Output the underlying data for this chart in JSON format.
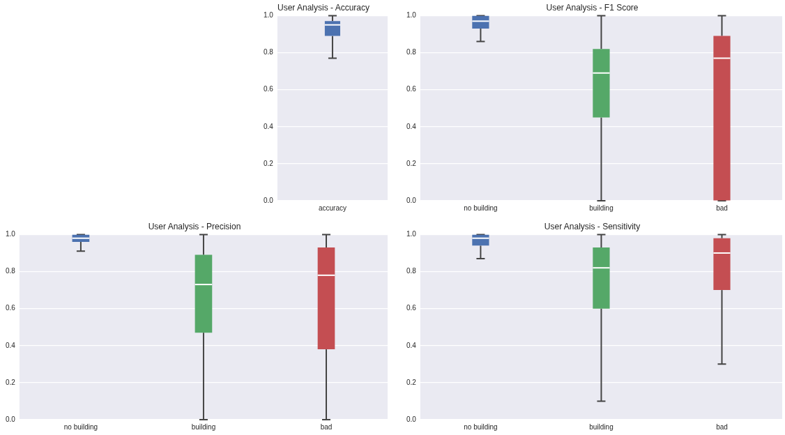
{
  "chart_data": [
    {
      "type": "box",
      "title": "User Analysis - Accuracy",
      "categories": [
        "accuracy"
      ],
      "colors": [
        "#4c72b0"
      ],
      "boxes": [
        {
          "low": 0.77,
          "q1": 0.89,
          "median": 0.95,
          "q3": 0.97,
          "high": 1.0
        }
      ],
      "ylim": [
        0,
        1
      ],
      "yticks": [
        {
          "value": 0,
          "label": "0.0"
        },
        {
          "value": 0.2,
          "label": "0.2"
        },
        {
          "value": 0.4,
          "label": "0.4"
        },
        {
          "value": 0.6,
          "label": "0.6"
        },
        {
          "value": 0.8,
          "label": "0.8"
        },
        {
          "value": 1,
          "label": "1.0"
        }
      ],
      "grid": "y"
    },
    {
      "type": "box",
      "title": "User Analysis - F1 Score",
      "categories": [
        "no building",
        "building",
        "bad"
      ],
      "colors": [
        "#4c72b0",
        "#55a868",
        "#c44e52"
      ],
      "boxes": [
        {
          "low": 0.86,
          "q1": 0.93,
          "median": 0.97,
          "q3": 1.0,
          "high": 1.0
        },
        {
          "low": 0.0,
          "q1": 0.45,
          "median": 0.69,
          "q3": 0.82,
          "high": 1.0
        },
        {
          "low": 0.0,
          "q1": 0.0,
          "median": 0.77,
          "q3": 0.89,
          "high": 1.0
        }
      ],
      "ylim": [
        0,
        1
      ],
      "yticks": [
        {
          "value": 0,
          "label": "0.0"
        },
        {
          "value": 0.2,
          "label": "0.2"
        },
        {
          "value": 0.4,
          "label": "0.4"
        },
        {
          "value": 0.6,
          "label": "0.6"
        },
        {
          "value": 0.8,
          "label": "0.8"
        },
        {
          "value": 1,
          "label": "1.0"
        }
      ],
      "grid": "y"
    },
    {
      "type": "box",
      "title": "User Analysis - Precision",
      "categories": [
        "no building",
        "building",
        "bad"
      ],
      "colors": [
        "#4c72b0",
        "#55a868",
        "#c44e52"
      ],
      "boxes": [
        {
          "low": 0.91,
          "q1": 0.96,
          "median": 0.98,
          "q3": 1.0,
          "high": 1.0
        },
        {
          "low": 0.0,
          "q1": 0.47,
          "median": 0.73,
          "q3": 0.89,
          "high": 1.0
        },
        {
          "low": 0.0,
          "q1": 0.38,
          "median": 0.78,
          "q3": 0.93,
          "high": 1.0
        }
      ],
      "ylim": [
        0,
        1
      ],
      "yticks": [
        {
          "value": 0,
          "label": "0.0"
        },
        {
          "value": 0.2,
          "label": "0.2"
        },
        {
          "value": 0.4,
          "label": "0.4"
        },
        {
          "value": 0.6,
          "label": "0.6"
        },
        {
          "value": 0.8,
          "label": "0.8"
        },
        {
          "value": 1,
          "label": "1.0"
        }
      ],
      "grid": "y"
    },
    {
      "type": "box",
      "title": "User Analysis - Sensitivity",
      "categories": [
        "no building",
        "building",
        "bad"
      ],
      "colors": [
        "#4c72b0",
        "#55a868",
        "#c44e52"
      ],
      "boxes": [
        {
          "low": 0.87,
          "q1": 0.94,
          "median": 0.98,
          "q3": 1.0,
          "high": 1.0
        },
        {
          "low": 0.1,
          "q1": 0.6,
          "median": 0.82,
          "q3": 0.93,
          "high": 1.0
        },
        {
          "low": 0.3,
          "q1": 0.7,
          "median": 0.9,
          "q3": 0.98,
          "high": 1.0
        }
      ],
      "ylim": [
        0,
        1
      ],
      "yticks": [
        {
          "value": 0,
          "label": "0.0"
        },
        {
          "value": 0.2,
          "label": "0.2"
        },
        {
          "value": 0.4,
          "label": "0.4"
        },
        {
          "value": 0.6,
          "label": "0.6"
        },
        {
          "value": 0.8,
          "label": "0.8"
        },
        {
          "value": 1,
          "label": "1.0"
        }
      ],
      "grid": "y"
    }
  ]
}
